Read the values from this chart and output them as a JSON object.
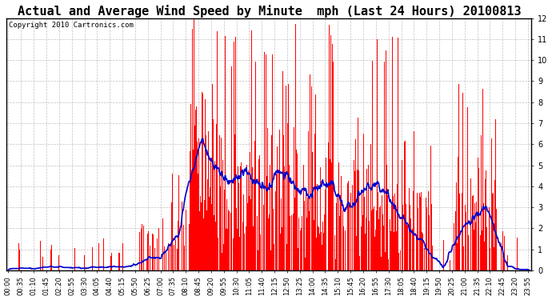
{
  "title": "Actual and Average Wind Speed by Minute  mph (Last 24 Hours) 20100813",
  "copyright": "Copyright 2010 Cartronics.com",
  "ylim": [
    0.0,
    12.0
  ],
  "yticks": [
    0.0,
    1.0,
    2.0,
    3.0,
    4.0,
    5.0,
    6.0,
    7.0,
    8.0,
    9.0,
    10.0,
    11.0,
    12.0
  ],
  "bar_color": "#ff0000",
  "line_color": "#0000cc",
  "background_color": "#ffffff",
  "grid_color": "#999999",
  "title_fontsize": 11,
  "copyright_fontsize": 6.5,
  "tick_label_fontsize": 6,
  "ytick_fontsize": 7,
  "tick_step": 35
}
